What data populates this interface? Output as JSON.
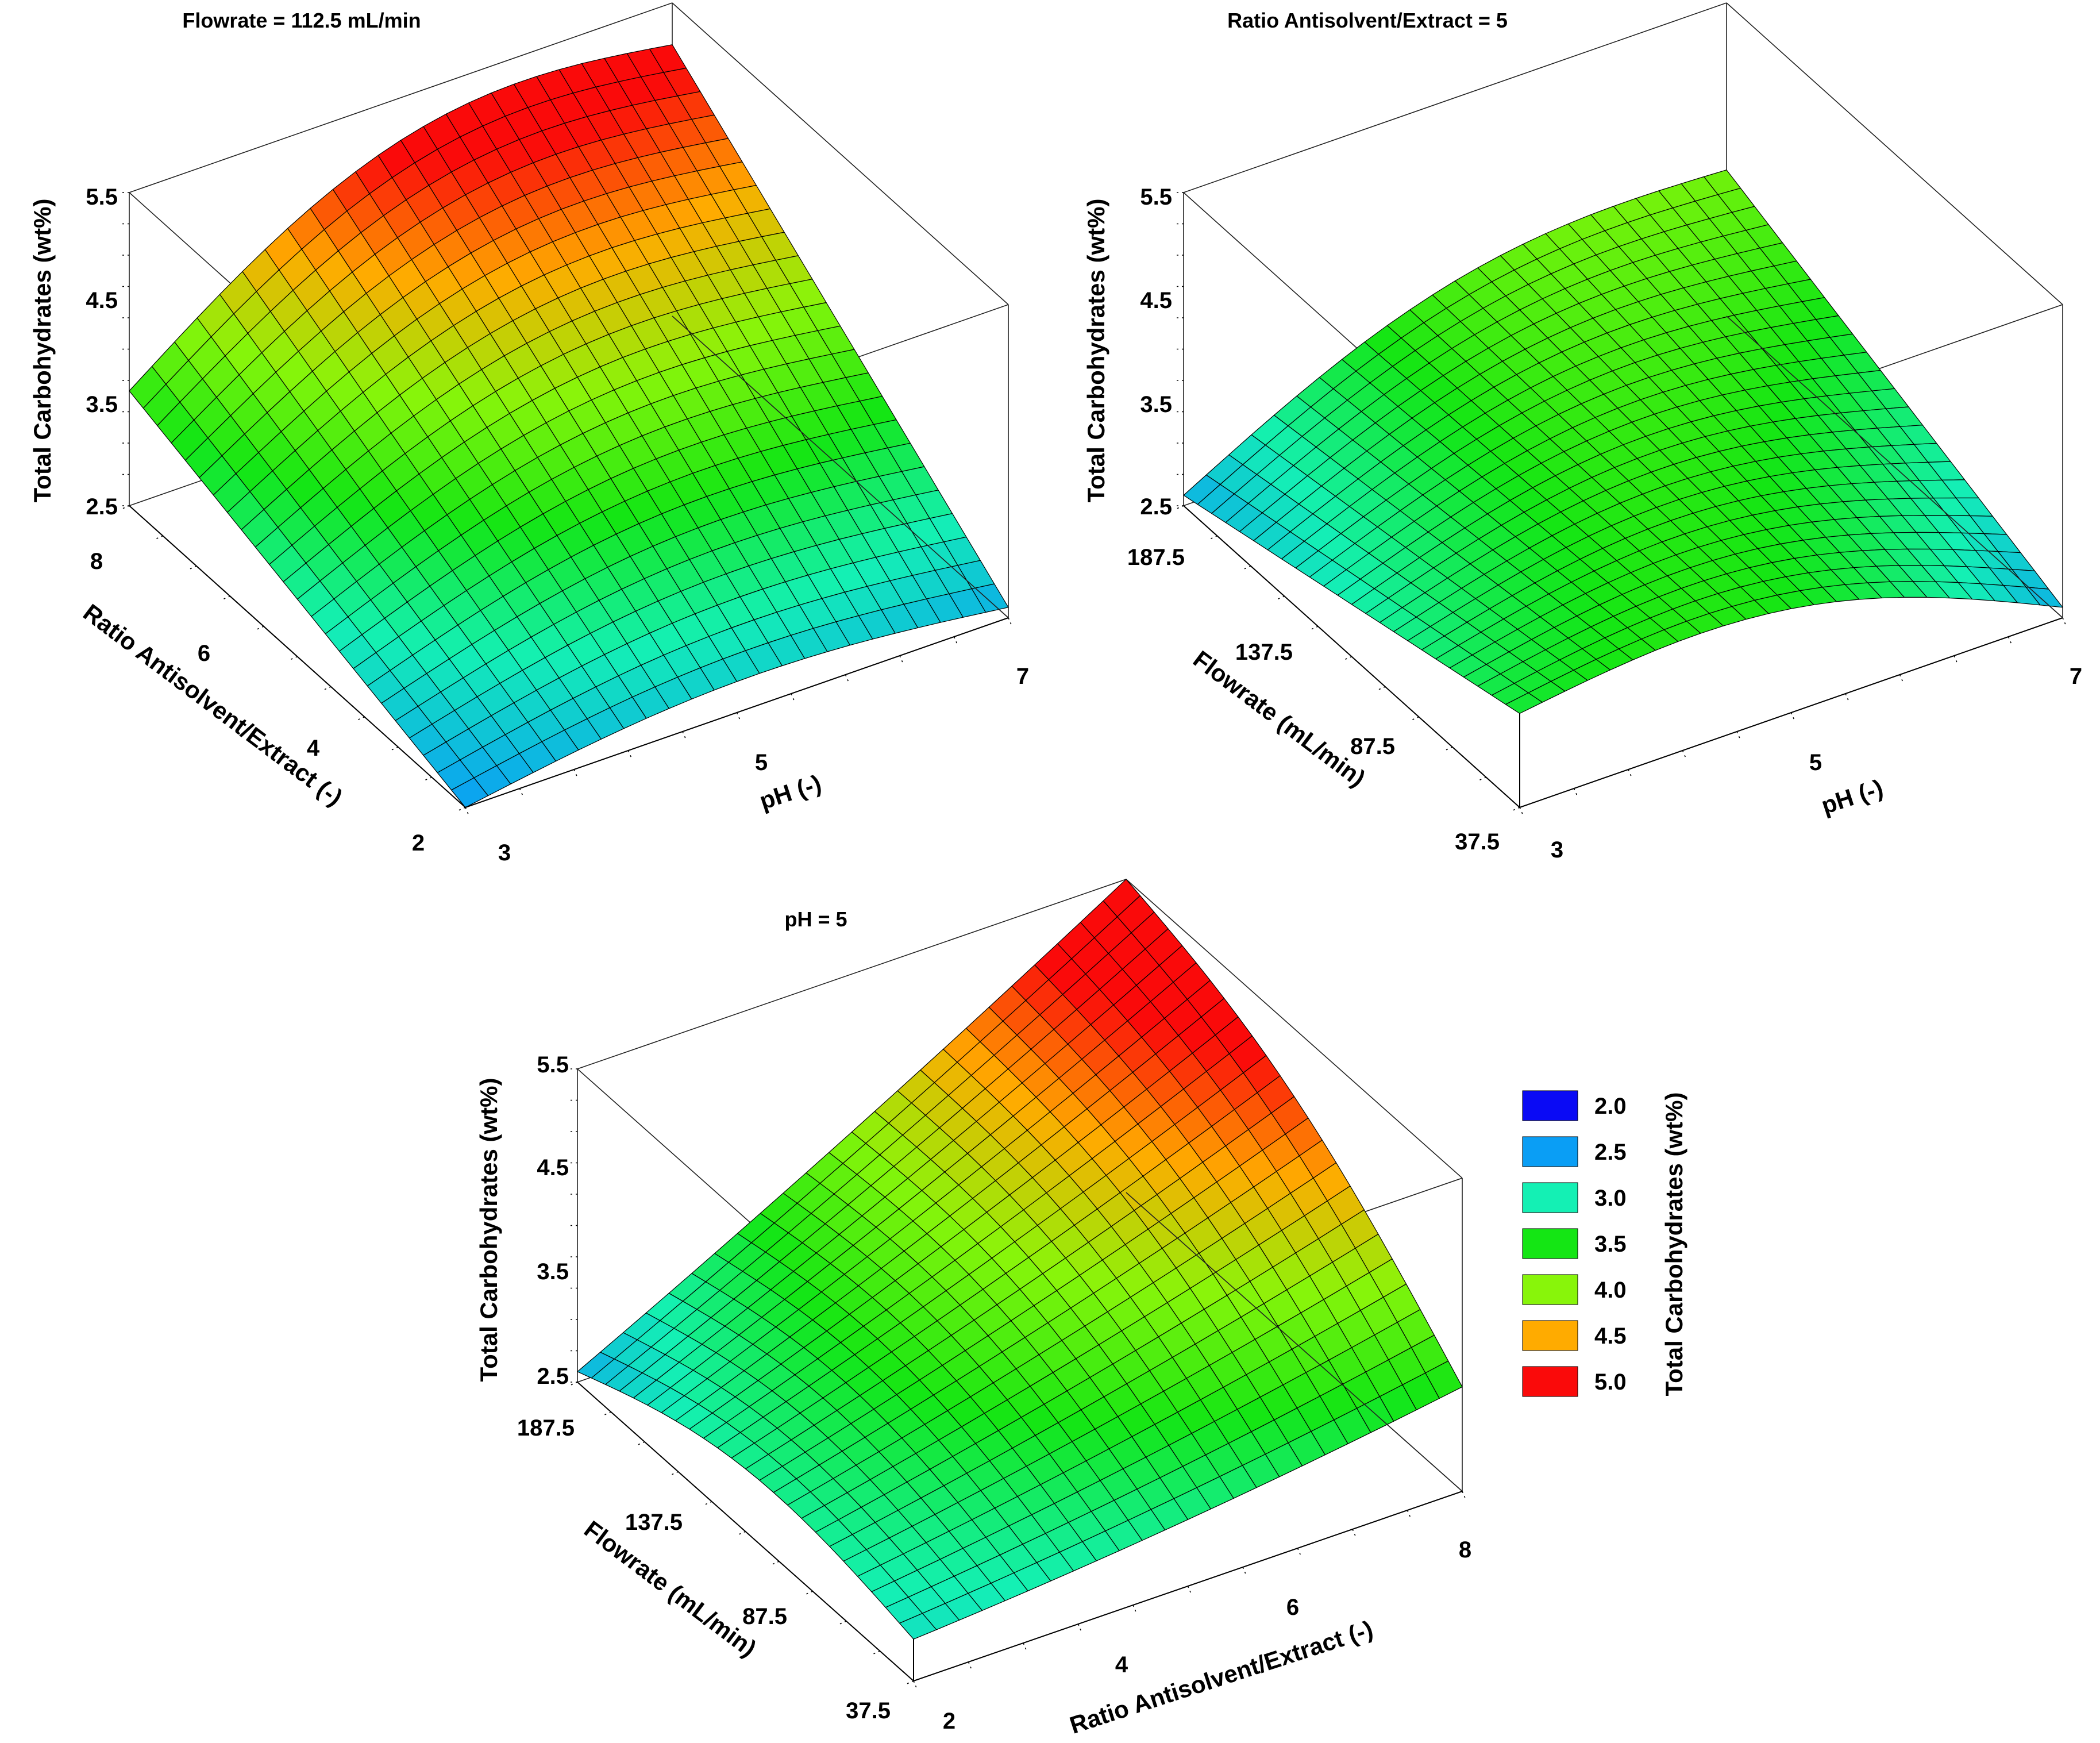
{
  "chart_data": [
    {
      "type": "surface3d",
      "title": "Flowrate = 112.5 mL/min",
      "xlabel": "pH (-)",
      "ylabel": "Ratio Antisolvent/Extract (-)",
      "zlabel": "Total Carbohydrates (wt%)",
      "x_range": [
        3,
        7
      ],
      "y_range": [
        2,
        8
      ],
      "z_range": [
        2.5,
        5.5
      ],
      "x_ticks": [
        "3",
        "5",
        "7"
      ],
      "y_ticks": [
        "2",
        "4",
        "6",
        "8"
      ],
      "z_ticks": [
        "2.5",
        "3.5",
        "4.5",
        "5.5"
      ],
      "corner_values": {
        "x3_y2": 2.5,
        "x7_y2": 2.6,
        "x3_y8": 3.6,
        "x7_y8": 5.1
      },
      "grid": [
        24,
        24
      ]
    },
    {
      "type": "surface3d",
      "title": "Ratio Antisolvent/Extract = 5",
      "xlabel": "pH (-)",
      "ylabel": "Flowrate (mL/min)",
      "zlabel": "Total Carbohydrates (wt%)",
      "x_range": [
        3,
        7
      ],
      "y_range": [
        37.5,
        187.5
      ],
      "z_range": [
        2.5,
        5.5
      ],
      "x_ticks": [
        "3",
        "5",
        "7"
      ],
      "y_ticks": [
        "37.5",
        "87.5",
        "137.5",
        "187.5"
      ],
      "z_ticks": [
        "2.5",
        "3.5",
        "4.5",
        "5.5"
      ],
      "corner_values": {
        "x3_y37.5": 3.4,
        "x7_y37.5": 2.6,
        "x3_y187.5": 2.6,
        "x7_y187.5": 3.9
      },
      "grid": [
        24,
        24
      ]
    },
    {
      "type": "surface3d",
      "title": "pH = 5",
      "xlabel": "Ratio Antisolvent/Extract (-)",
      "ylabel": "Flowrate (mL/min)",
      "zlabel": "Total Carbohydrates (wt%)",
      "x_range": [
        2,
        8
      ],
      "y_range": [
        37.5,
        187.5
      ],
      "z_range": [
        2.5,
        5.5
      ],
      "x_ticks": [
        "2",
        "4",
        "6",
        "8"
      ],
      "y_ticks": [
        "37.5",
        "87.5",
        "137.5",
        "187.5"
      ],
      "z_ticks": [
        "2.5",
        "3.5",
        "4.5",
        "5.5"
      ],
      "corner_values": {
        "x2_y37.5": 2.9,
        "x8_y37.5": 3.5,
        "x2_y187.5": 2.6,
        "x8_y187.5": 5.5
      },
      "grid": [
        24,
        24
      ]
    }
  ],
  "legend": {
    "title": "Total Carbohydrates (wt%)",
    "items": [
      {
        "label": "2.0",
        "color": "#0a0af5"
      },
      {
        "label": "2.5",
        "color": "#0a9ef5"
      },
      {
        "label": "3.0",
        "color": "#14f0b4"
      },
      {
        "label": "3.5",
        "color": "#14e614"
      },
      {
        "label": "4.0",
        "color": "#88f50a"
      },
      {
        "label": "4.5",
        "color": "#ffab00"
      },
      {
        "label": "5.0",
        "color": "#fa0a0a"
      }
    ]
  }
}
